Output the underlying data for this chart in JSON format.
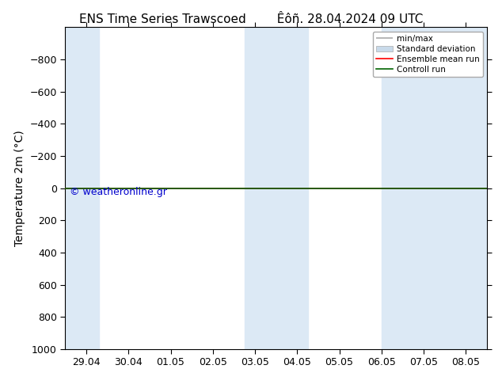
{
  "title_left": "ENS Time Series Trawscoed",
  "title_right": "Êôñ. 28.04.2024 09 UTC",
  "ylabel": "Temperature 2m (°C)",
  "watermark": "© weatheronline.gr",
  "watermark_color": "#0000cc",
  "ylim_top": -1000,
  "ylim_bottom": 1000,
  "yticks": [
    -800,
    -600,
    -400,
    -200,
    0,
    200,
    400,
    600,
    800,
    1000
  ],
  "xtick_labels": [
    "29.04",
    "30.04",
    "01.05",
    "02.05",
    "03.05",
    "04.05",
    "05.05",
    "06.05",
    "07.05",
    "08.05"
  ],
  "x_values": [
    0,
    1,
    2,
    3,
    4,
    5,
    6,
    7,
    8,
    9
  ],
  "background_color": "#ffffff",
  "plot_bg_color": "#ffffff",
  "shaded_bands": [
    {
      "xmin": -0.5,
      "xmax": 0.3,
      "color": "#dce9f5"
    },
    {
      "xmin": 3.75,
      "xmax": 5.25,
      "color": "#dce9f5"
    },
    {
      "xmin": 7.0,
      "xmax": 9.5,
      "color": "#dce9f5"
    }
  ],
  "control_run_y": 0,
  "ensemble_mean_y": 0,
  "legend_items": [
    {
      "label": "min/max",
      "color": "#aaaaaa",
      "lw": 1.2
    },
    {
      "label": "Standard deviation",
      "color": "#c8daea",
      "lw": 8
    },
    {
      "label": "Ensemble mean run",
      "color": "#ff0000",
      "lw": 1.2
    },
    {
      "label": "Controll run",
      "color": "#006400",
      "lw": 1.2
    }
  ],
  "title_fontsize": 11,
  "tick_fontsize": 9,
  "ylabel_fontsize": 10,
  "watermark_fontsize": 9,
  "fig_width": 6.34,
  "fig_height": 4.9,
  "dpi": 100
}
